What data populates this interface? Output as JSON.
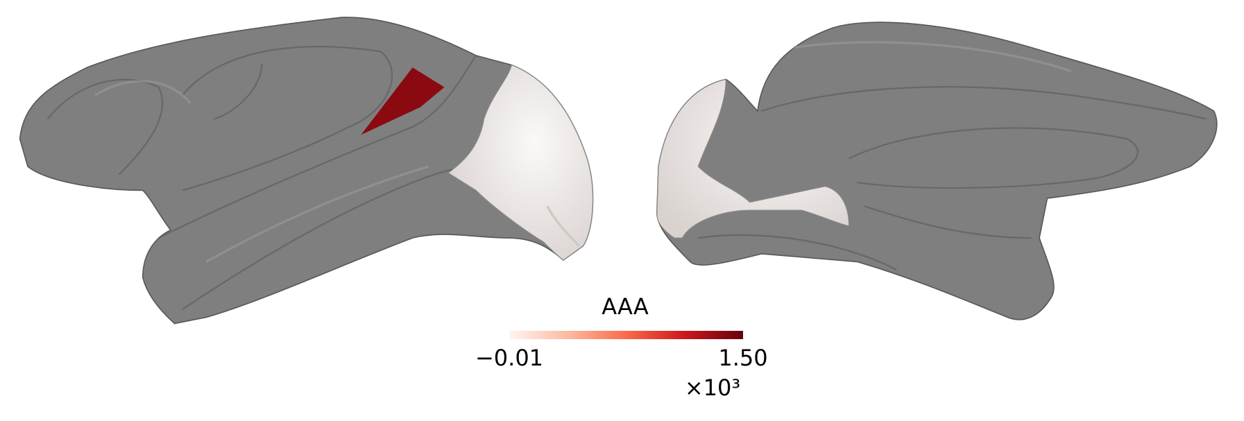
{
  "colorbar": {
    "title": "AAA",
    "clim": [
      -0.01,
      1.5
    ],
    "ticks": [
      {
        "value": -0.01,
        "label": "−0.01"
      },
      {
        "value": 1.5,
        "label": "1.50"
      }
    ],
    "offset_label": "×10³"
  }
}
